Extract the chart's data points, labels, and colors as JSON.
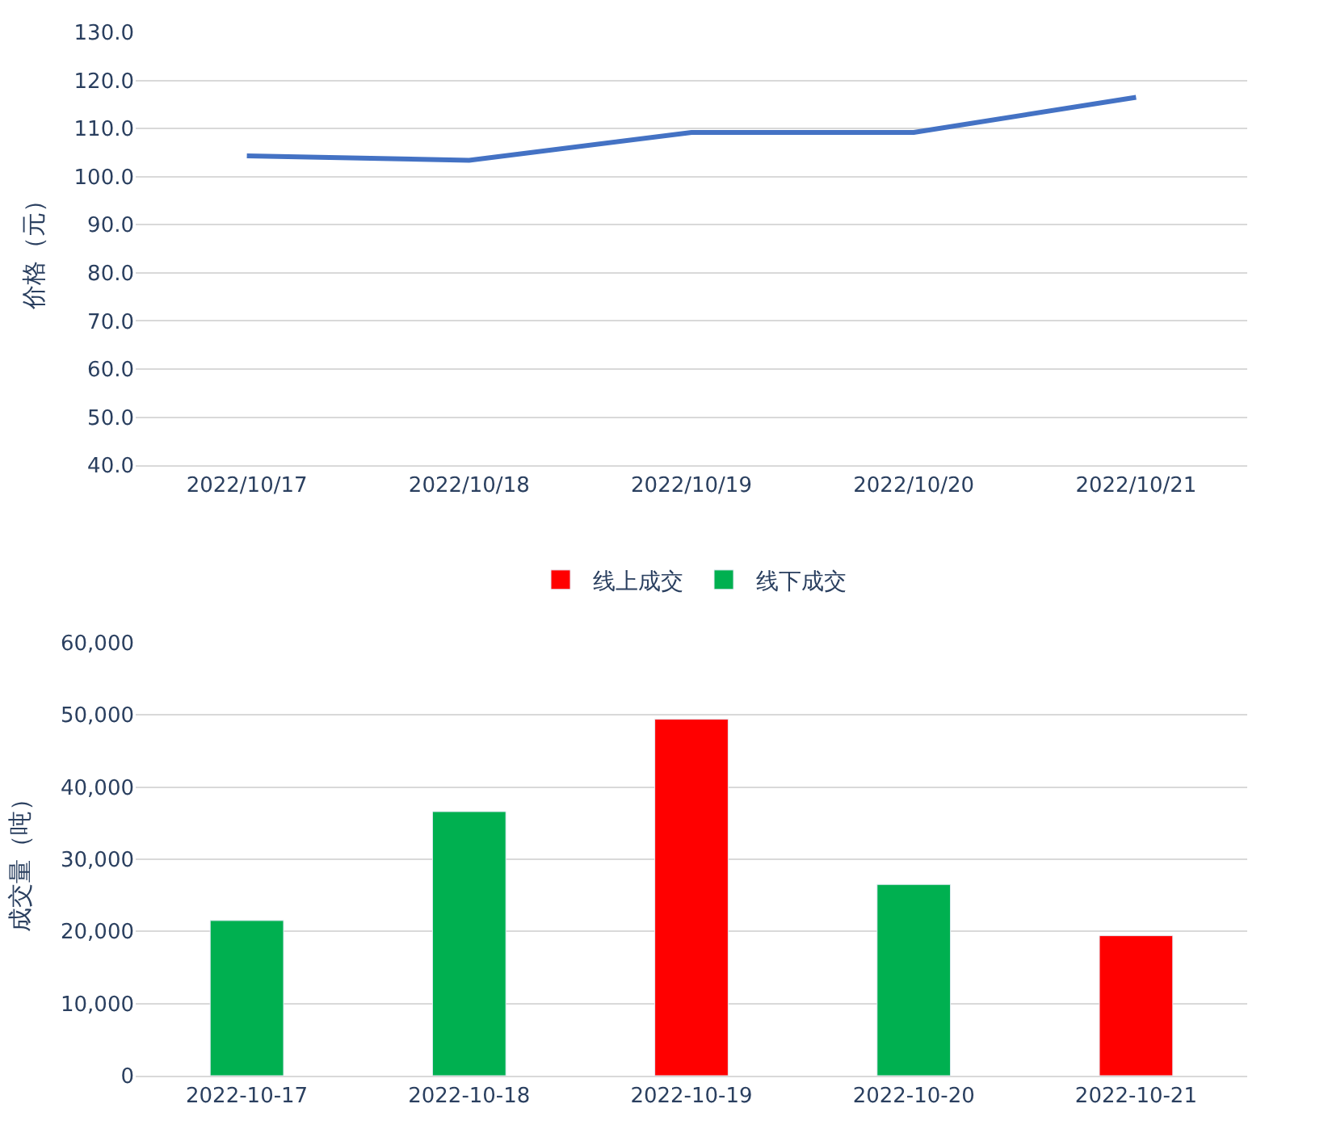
{
  "chart_data": [
    {
      "type": "line",
      "ylabel": "价格（元）",
      "categories": [
        "2022/10/17",
        "2022/10/18",
        "2022/10/19",
        "2022/10/20",
        "2022/10/21"
      ],
      "series": [
        {
          "color": "#4472c4",
          "values": [
            104.3,
            103.4,
            109.2,
            109.2,
            116.5
          ]
        }
      ],
      "ylim": [
        40,
        130
      ],
      "yticks": [
        {
          "value": 40,
          "label": "40.0"
        },
        {
          "value": 50,
          "label": "50.0"
        },
        {
          "value": 60,
          "label": "60.0"
        },
        {
          "value": 70,
          "label": "70.0"
        },
        {
          "value": 80,
          "label": "80.0"
        },
        {
          "value": 90,
          "label": "90.0"
        },
        {
          "value": 100,
          "label": "100.0"
        },
        {
          "value": 110,
          "label": "110.0"
        },
        {
          "value": 120,
          "label": "120.0"
        },
        {
          "value": 130,
          "label": "130.0"
        }
      ],
      "grid": "y",
      "legend": false,
      "marker": "none",
      "line_style": "solid"
    },
    {
      "type": "bar",
      "ylabel": "成交量（吨）",
      "categories": [
        "2022-10-17",
        "2022-10-18",
        "2022-10-19",
        "2022-10-20",
        "2022-10-21"
      ],
      "series": [
        {
          "name": "线上成交",
          "color": "#ff0000",
          "values": [
            null,
            null,
            49400,
            null,
            19400
          ]
        },
        {
          "name": "线下成交",
          "color": "#00b050",
          "values": [
            21500,
            36600,
            null,
            26500,
            null
          ]
        }
      ],
      "ylim": [
        0,
        60000
      ],
      "yticks": [
        0,
        {
          "value": 10000,
          "label": "10,000"
        },
        {
          "value": 20000,
          "label": "20,000"
        },
        {
          "value": 30000,
          "label": "30,000"
        },
        {
          "value": 40000,
          "label": "40,000"
        },
        {
          "value": 50000,
          "label": "50,000"
        },
        {
          "value": 60000,
          "label": "60,000"
        }
      ],
      "grid": "y",
      "legend": "top"
    }
  ]
}
